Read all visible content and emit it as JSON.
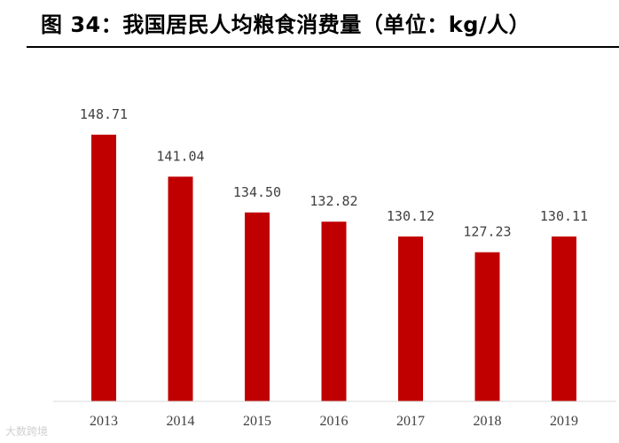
{
  "title": "图 34：我国居民人均粮食消费量（单位：kg/人）",
  "watermark": "大数跨境",
  "chart_data": {
    "type": "bar",
    "categories": [
      "2013",
      "2014",
      "2015",
      "2016",
      "2017",
      "2018",
      "2019"
    ],
    "values": [
      148.71,
      141.04,
      134.5,
      132.82,
      130.12,
      127.23,
      130.11
    ],
    "value_labels": [
      "148.71",
      "141.04",
      "134.50",
      "132.82",
      "130.12",
      "127.23",
      "130.11"
    ],
    "xlabel": "",
    "ylabel": "",
    "ylim": [
      100,
      150
    ],
    "grid": false,
    "legend": "none",
    "bar_color": "#C00000"
  }
}
